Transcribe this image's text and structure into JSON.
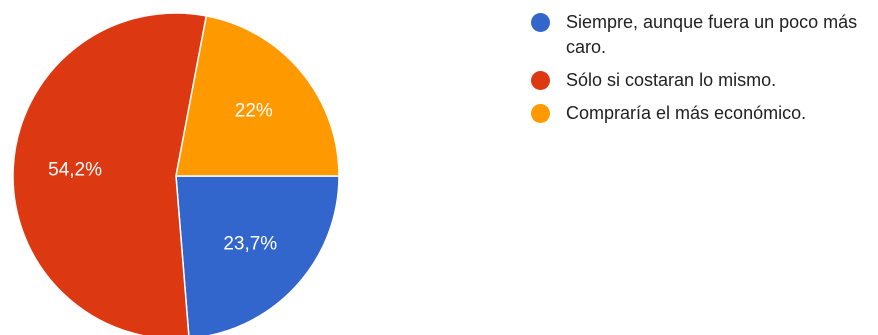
{
  "chart_data": {
    "type": "pie",
    "title": "",
    "legend_position": "right",
    "start_angle_deg": 0,
    "direction": "clockwise",
    "slices": [
      {
        "label": "Siempre, aunque fuera un poco más caro.",
        "value": 23.7,
        "value_label": "23,7%",
        "color": "#3366cc"
      },
      {
        "label": "Sólo si costaran lo mismo.",
        "value": 54.2,
        "value_label": "54,2%",
        "color": "#dc3912"
      },
      {
        "label": "Compraría el más económico.",
        "value": 22.0,
        "value_label": "22%",
        "color": "#ff9900"
      }
    ]
  }
}
